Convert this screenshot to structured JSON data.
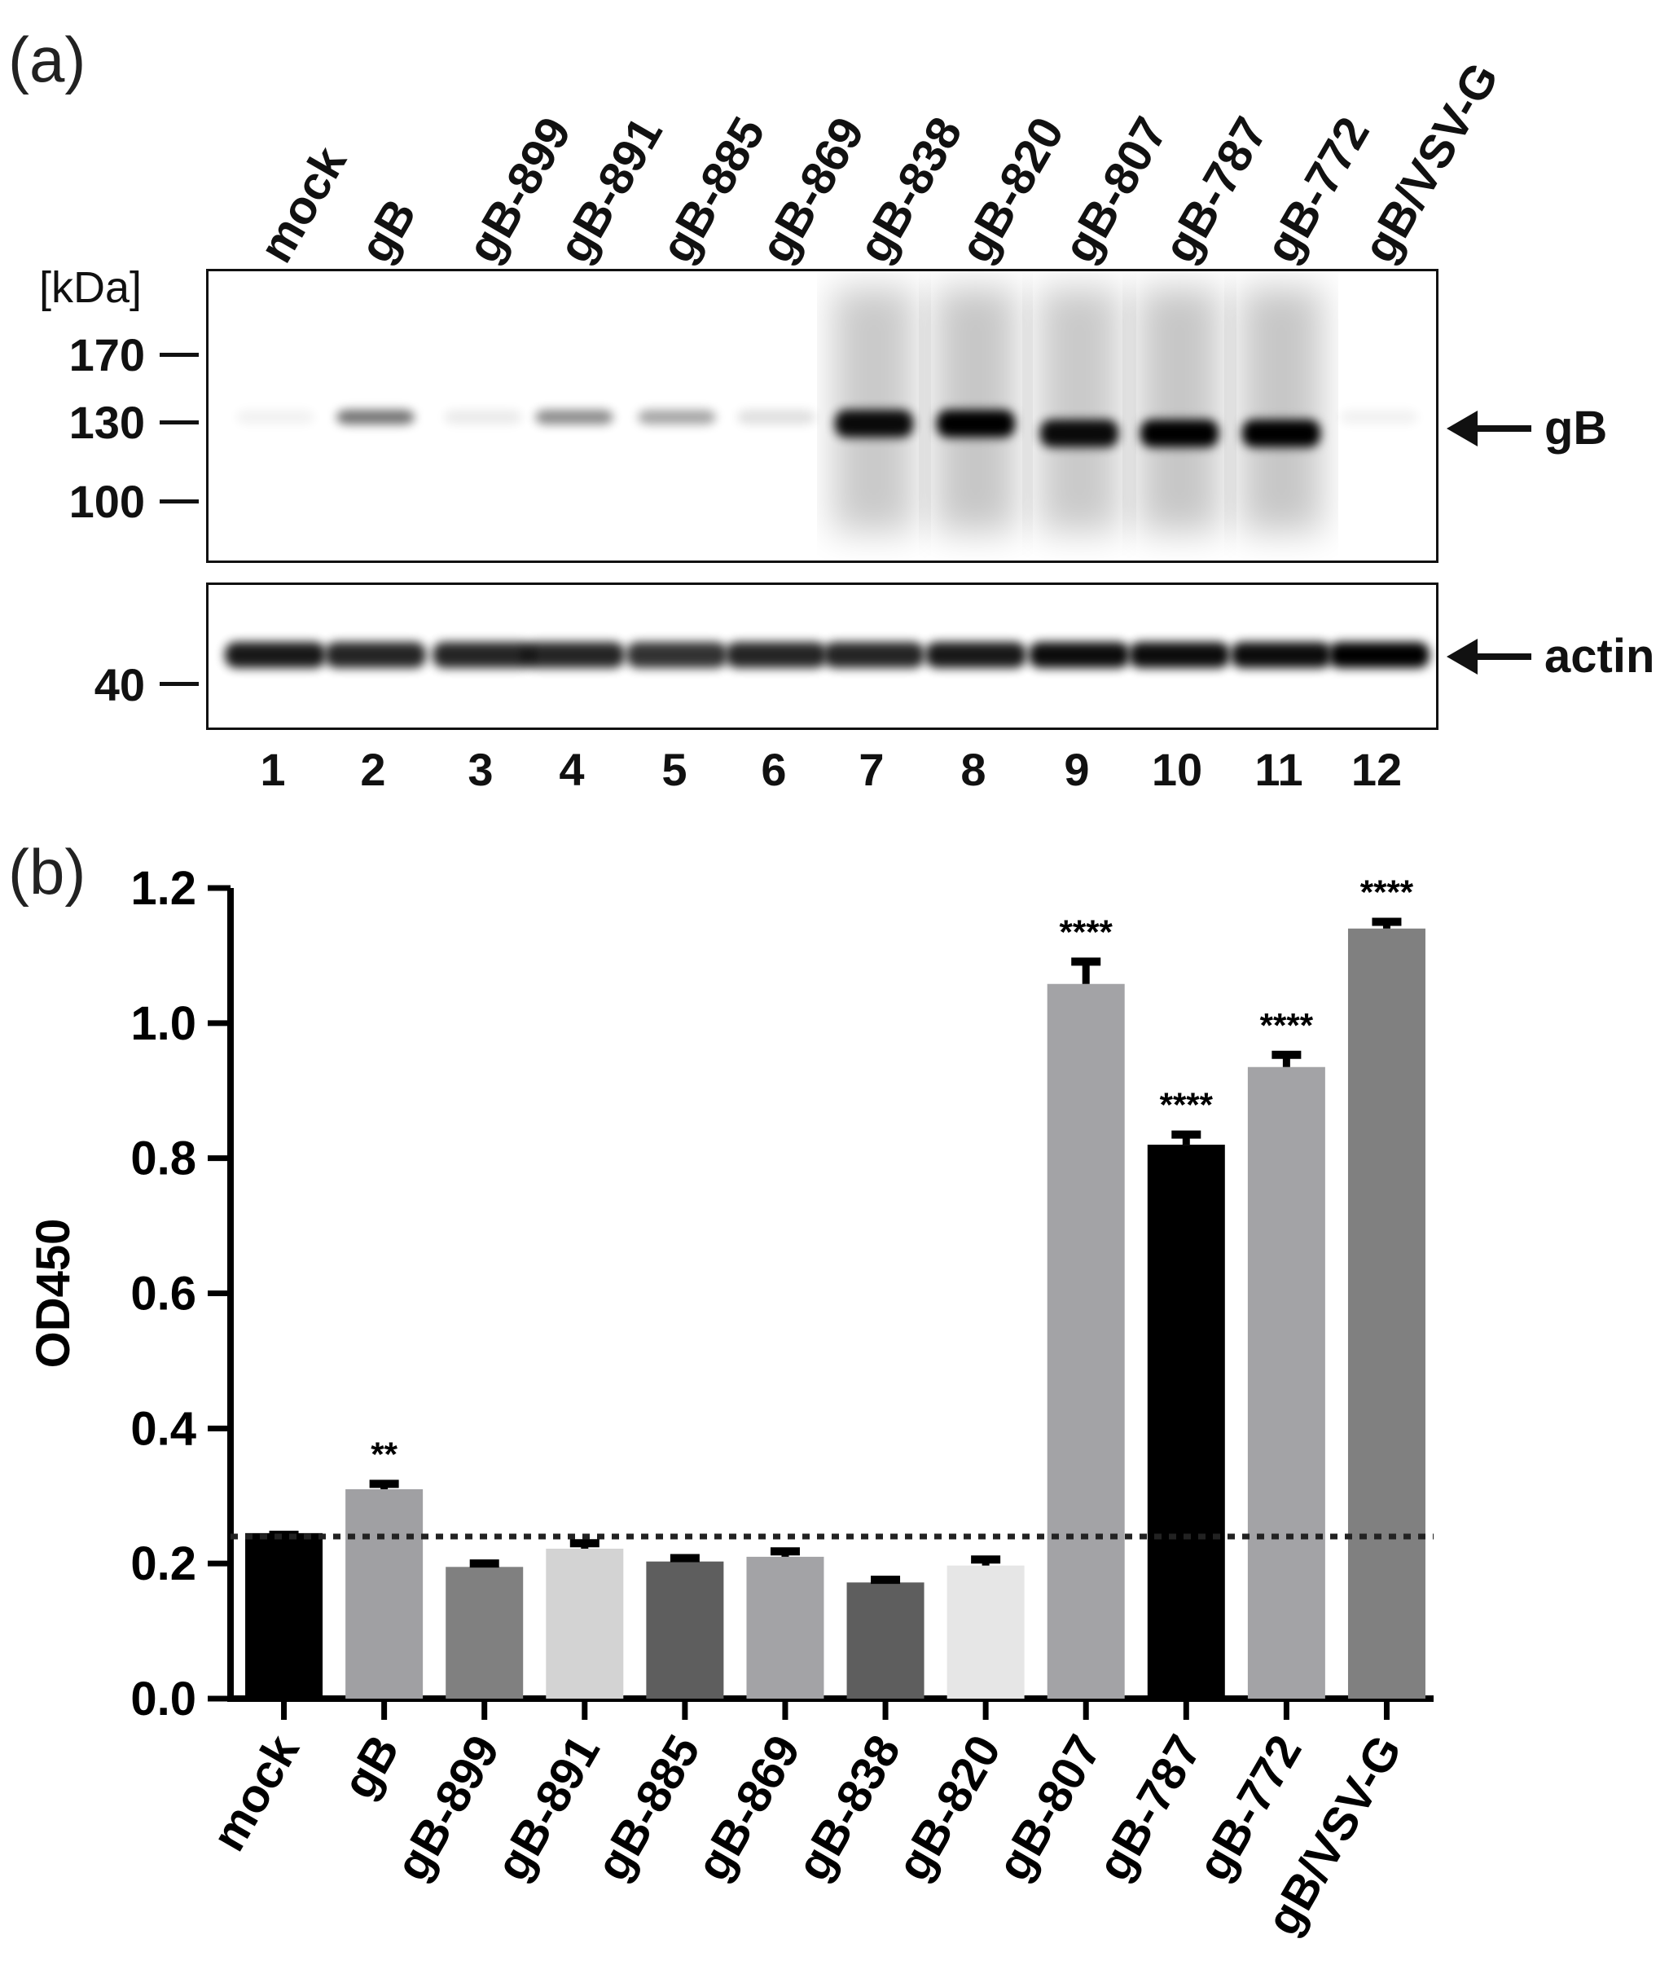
{
  "panel_a": {
    "label": "(a)",
    "lane_headers": [
      "mock",
      "gB",
      "gB-899",
      "gB-891",
      "gB-885",
      "gB-869",
      "gB-838",
      "gB-820",
      "gB-807",
      "gB-787",
      "gB-772",
      "gB/VSV-G"
    ],
    "lane_numbers": [
      "1",
      "2",
      "3",
      "4",
      "5",
      "6",
      "7",
      "8",
      "9",
      "10",
      "11",
      "12"
    ],
    "mw_unit": "[kDa]",
    "mw_markers": [
      "170",
      "130",
      "100"
    ],
    "actin_marker": "40",
    "gb_label": "gB",
    "actin_label": "actin",
    "gb_band_intensity": [
      0.05,
      0.55,
      0.08,
      0.45,
      0.35,
      0.12,
      0.95,
      1.0,
      0.95,
      1.0,
      1.0,
      0.05
    ],
    "actin_band_intensity": [
      0.9,
      0.85,
      0.85,
      0.85,
      0.8,
      0.85,
      0.85,
      0.9,
      0.95,
      0.95,
      0.95,
      1.0
    ]
  },
  "panel_b": {
    "label": "(b)"
  },
  "chart_data": {
    "type": "bar",
    "title": "",
    "xlabel": "",
    "ylabel": "OD450",
    "ylim": [
      0,
      1.2
    ],
    "yticks": [
      "0.0",
      "0.2",
      "0.4",
      "0.6",
      "0.8",
      "1.0",
      "1.2"
    ],
    "categories": [
      "mock",
      "gB",
      "gB-899",
      "gB-891",
      "gB-885",
      "gB-869",
      "gB-838",
      "gB-820",
      "gB-807",
      "gB-787",
      "gB-772",
      "gB/VSV-G"
    ],
    "values": [
      0.245,
      0.31,
      0.195,
      0.222,
      0.203,
      0.21,
      0.172,
      0.197,
      1.058,
      0.82,
      0.935,
      1.14
    ],
    "errors": [
      0.0,
      0.008,
      0.005,
      0.008,
      0.005,
      0.008,
      0.004,
      0.009,
      0.033,
      0.015,
      0.018,
      0.01
    ],
    "significance": [
      "",
      "**",
      "",
      "",
      "",
      "",
      "",
      "",
      "****",
      "****",
      "****",
      "****"
    ],
    "bar_colors": [
      "#000000",
      "#a0a0a3",
      "#808080",
      "#d3d3d3",
      "#5e5e5e",
      "#a3a3a6",
      "#5e5e5e",
      "#e6e6e6",
      "#a3a3a6",
      "#000000",
      "#a3a3a6",
      "#808080"
    ],
    "reference_line": 0.24,
    "grid": false,
    "legend": "none"
  }
}
